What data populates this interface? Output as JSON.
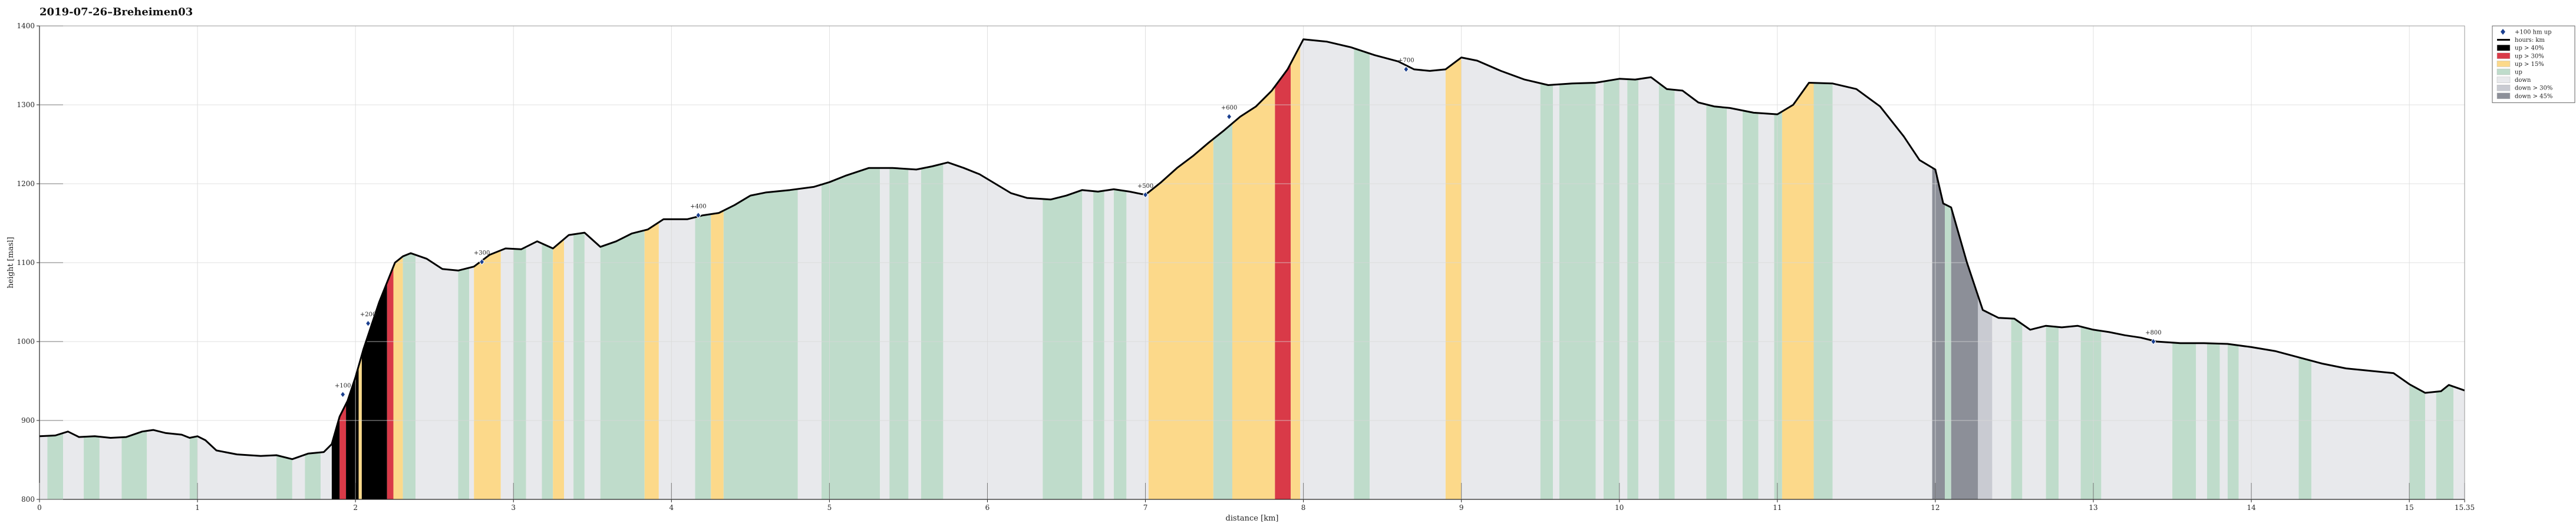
{
  "chart_data": {
    "type": "area",
    "title": "2019-07-26–Breheimen03",
    "xlabel": "distance [km]",
    "ylabel": "height [masl]",
    "xlim": [
      0,
      15.35
    ],
    "ylim": [
      800,
      1400
    ],
    "x_ticks": [
      0,
      1,
      2,
      3,
      4,
      5,
      6,
      7,
      8,
      9,
      10,
      11,
      12,
      13,
      14,
      15,
      15.35
    ],
    "x_tick_labels": [
      "0",
      "1",
      "2",
      "3",
      "4",
      "5",
      "6",
      "7",
      "8",
      "9",
      "10",
      "11",
      "12",
      "13",
      "14",
      "15",
      "15.35"
    ],
    "y_ticks": [
      800,
      900,
      1000,
      1100,
      1200,
      1300,
      1400
    ],
    "y_tick_labels": [
      "800",
      "900",
      "1000",
      "1100",
      "1200",
      "1300",
      "1400"
    ],
    "grid": true,
    "legend_position": "top-right outside",
    "colors": {
      "up_gt_40": "#000000",
      "up_gt_30": "#d93a48",
      "up_gt_15": "#fcd98a",
      "up": "#bfdccb",
      "down": "#e8e9ec",
      "down_gt_30": "#c9cbd2",
      "down_gt_45": "#8c8f98",
      "line": "#000000",
      "marker": "#1a3f8f"
    },
    "legend": [
      {
        "key": "marker",
        "label": "+100 hm up"
      },
      {
        "key": "line",
        "label": "hours: km"
      },
      {
        "key": "up_gt_40",
        "label": "up > 40%"
      },
      {
        "key": "up_gt_30",
        "label": "up > 30%"
      },
      {
        "key": "up_gt_15",
        "label": "up > 15%"
      },
      {
        "key": "up",
        "label": "up"
      },
      {
        "key": "down",
        "label": "down"
      },
      {
        "key": "down_gt_30",
        "label": "down > 30%"
      },
      {
        "key": "down_gt_45",
        "label": "down > 45%"
      }
    ],
    "profile": [
      [
        0,
        880
      ],
      [
        0.1,
        881
      ],
      [
        0.18,
        886
      ],
      [
        0.25,
        879
      ],
      [
        0.35,
        880
      ],
      [
        0.45,
        878
      ],
      [
        0.55,
        879
      ],
      [
        0.65,
        886
      ],
      [
        0.72,
        888
      ],
      [
        0.8,
        884
      ],
      [
        0.9,
        882
      ],
      [
        0.95,
        878
      ],
      [
        1.0,
        880
      ],
      [
        1.05,
        875
      ],
      [
        1.12,
        862
      ],
      [
        1.25,
        857
      ],
      [
        1.4,
        855
      ],
      [
        1.5,
        856
      ],
      [
        1.6,
        851
      ],
      [
        1.7,
        858
      ],
      [
        1.8,
        860
      ],
      [
        1.85,
        870
      ],
      [
        1.9,
        905
      ],
      [
        1.95,
        925
      ],
      [
        2.0,
        955
      ],
      [
        2.05,
        990
      ],
      [
        2.1,
        1020
      ],
      [
        2.15,
        1050
      ],
      [
        2.2,
        1075
      ],
      [
        2.25,
        1100
      ],
      [
        2.3,
        1108
      ],
      [
        2.35,
        1112
      ],
      [
        2.45,
        1105
      ],
      [
        2.55,
        1092
      ],
      [
        2.65,
        1090
      ],
      [
        2.75,
        1095
      ],
      [
        2.85,
        1110
      ],
      [
        2.95,
        1118
      ],
      [
        3.05,
        1117
      ],
      [
        3.15,
        1127
      ],
      [
        3.25,
        1118
      ],
      [
        3.35,
        1135
      ],
      [
        3.45,
        1138
      ],
      [
        3.55,
        1120
      ],
      [
        3.65,
        1127
      ],
      [
        3.75,
        1137
      ],
      [
        3.85,
        1142
      ],
      [
        3.95,
        1155
      ],
      [
        4.1,
        1155
      ],
      [
        4.2,
        1160
      ],
      [
        4.3,
        1163
      ],
      [
        4.4,
        1173
      ],
      [
        4.5,
        1185
      ],
      [
        4.6,
        1189
      ],
      [
        4.75,
        1192
      ],
      [
        4.9,
        1196
      ],
      [
        5.0,
        1202
      ],
      [
        5.1,
        1210
      ],
      [
        5.25,
        1220
      ],
      [
        5.4,
        1220
      ],
      [
        5.55,
        1218
      ],
      [
        5.65,
        1222
      ],
      [
        5.75,
        1227
      ],
      [
        5.85,
        1220
      ],
      [
        5.95,
        1212
      ],
      [
        6.05,
        1200
      ],
      [
        6.15,
        1188
      ],
      [
        6.25,
        1182
      ],
      [
        6.4,
        1180
      ],
      [
        6.5,
        1185
      ],
      [
        6.6,
        1192
      ],
      [
        6.7,
        1190
      ],
      [
        6.8,
        1193
      ],
      [
        6.9,
        1190
      ],
      [
        7.0,
        1186
      ],
      [
        7.1,
        1202
      ],
      [
        7.2,
        1220
      ],
      [
        7.3,
        1235
      ],
      [
        7.4,
        1252
      ],
      [
        7.5,
        1268
      ],
      [
        7.6,
        1285
      ],
      [
        7.7,
        1298
      ],
      [
        7.8,
        1318
      ],
      [
        7.9,
        1345
      ],
      [
        8.0,
        1383
      ],
      [
        8.15,
        1380
      ],
      [
        8.3,
        1373
      ],
      [
        8.45,
        1363
      ],
      [
        8.6,
        1355
      ],
      [
        8.7,
        1345
      ],
      [
        8.8,
        1343
      ],
      [
        8.9,
        1345
      ],
      [
        9.0,
        1360
      ],
      [
        9.1,
        1356
      ],
      [
        9.25,
        1343
      ],
      [
        9.4,
        1332
      ],
      [
        9.55,
        1325
      ],
      [
        9.7,
        1327
      ],
      [
        9.85,
        1328
      ],
      [
        10.0,
        1333
      ],
      [
        10.1,
        1332
      ],
      [
        10.2,
        1335
      ],
      [
        10.3,
        1320
      ],
      [
        10.4,
        1318
      ],
      [
        10.5,
        1303
      ],
      [
        10.6,
        1298
      ],
      [
        10.7,
        1296
      ],
      [
        10.85,
        1290
      ],
      [
        11.0,
        1288
      ],
      [
        11.1,
        1300
      ],
      [
        11.2,
        1328
      ],
      [
        11.35,
        1327
      ],
      [
        11.5,
        1320
      ],
      [
        11.65,
        1298
      ],
      [
        11.8,
        1260
      ],
      [
        11.9,
        1230
      ],
      [
        12.0,
        1218
      ],
      [
        12.05,
        1175
      ],
      [
        12.1,
        1170
      ],
      [
        12.2,
        1100
      ],
      [
        12.3,
        1040
      ],
      [
        12.4,
        1030
      ],
      [
        12.5,
        1029
      ],
      [
        12.6,
        1015
      ],
      [
        12.7,
        1020
      ],
      [
        12.8,
        1018
      ],
      [
        12.9,
        1020
      ],
      [
        13.0,
        1015
      ],
      [
        13.1,
        1012
      ],
      [
        13.2,
        1008
      ],
      [
        13.3,
        1005
      ],
      [
        13.4,
        1000
      ],
      [
        13.55,
        998
      ],
      [
        13.7,
        998
      ],
      [
        13.85,
        997
      ],
      [
        14.0,
        993
      ],
      [
        14.15,
        988
      ],
      [
        14.3,
        980
      ],
      [
        14.45,
        972
      ],
      [
        14.6,
        966
      ],
      [
        14.75,
        963
      ],
      [
        14.9,
        960
      ],
      [
        15.0,
        946
      ],
      [
        15.1,
        935
      ],
      [
        15.2,
        937
      ],
      [
        15.25,
        945
      ],
      [
        15.35,
        938
      ]
    ],
    "segments": [
      [
        0,
        0.05,
        "down"
      ],
      [
        0.05,
        0.15,
        "up"
      ],
      [
        0.15,
        0.28,
        "down"
      ],
      [
        0.28,
        0.38,
        "up"
      ],
      [
        0.38,
        0.52,
        "down"
      ],
      [
        0.52,
        0.68,
        "up"
      ],
      [
        0.68,
        0.95,
        "down"
      ],
      [
        0.95,
        1.0,
        "up"
      ],
      [
        1.0,
        1.5,
        "down"
      ],
      [
        1.5,
        1.6,
        "up"
      ],
      [
        1.6,
        1.68,
        "down"
      ],
      [
        1.68,
        1.78,
        "up"
      ],
      [
        1.78,
        1.85,
        "down"
      ],
      [
        1.85,
        1.9,
        "up_gt_40"
      ],
      [
        1.9,
        1.94,
        "up_gt_30"
      ],
      [
        1.94,
        2.02,
        "up_gt_40"
      ],
      [
        2.02,
        2.04,
        "up_gt_15"
      ],
      [
        2.04,
        2.2,
        "up_gt_40"
      ],
      [
        2.2,
        2.24,
        "up_gt_30"
      ],
      [
        2.24,
        2.3,
        "up_gt_15"
      ],
      [
        2.3,
        2.38,
        "up"
      ],
      [
        2.38,
        2.65,
        "down"
      ],
      [
        2.65,
        2.72,
        "up"
      ],
      [
        2.72,
        2.75,
        "down"
      ],
      [
        2.75,
        2.92,
        "up_gt_15"
      ],
      [
        2.92,
        3.0,
        "down"
      ],
      [
        3.0,
        3.08,
        "up"
      ],
      [
        3.08,
        3.18,
        "down"
      ],
      [
        3.18,
        3.25,
        "up"
      ],
      [
        3.25,
        3.32,
        "up_gt_15"
      ],
      [
        3.32,
        3.38,
        "down"
      ],
      [
        3.38,
        3.45,
        "up"
      ],
      [
        3.45,
        3.55,
        "down"
      ],
      [
        3.55,
        3.83,
        "up"
      ],
      [
        3.83,
        3.92,
        "up_gt_15"
      ],
      [
        3.92,
        4.15,
        "down"
      ],
      [
        4.15,
        4.25,
        "up"
      ],
      [
        4.25,
        4.33,
        "up_gt_15"
      ],
      [
        4.33,
        4.8,
        "up"
      ],
      [
        4.8,
        4.95,
        "down"
      ],
      [
        4.95,
        5.32,
        "up"
      ],
      [
        5.32,
        5.38,
        "down"
      ],
      [
        5.38,
        5.5,
        "up"
      ],
      [
        5.5,
        5.58,
        "down"
      ],
      [
        5.58,
        5.72,
        "up"
      ],
      [
        5.72,
        6.35,
        "down"
      ],
      [
        6.35,
        6.6,
        "up"
      ],
      [
        6.6,
        6.67,
        "down"
      ],
      [
        6.67,
        6.74,
        "up"
      ],
      [
        6.74,
        6.8,
        "down"
      ],
      [
        6.8,
        6.88,
        "up"
      ],
      [
        6.88,
        7.02,
        "down"
      ],
      [
        7.02,
        7.43,
        "up_gt_15"
      ],
      [
        7.43,
        7.55,
        "up"
      ],
      [
        7.55,
        7.82,
        "up_gt_15"
      ],
      [
        7.82,
        7.92,
        "up_gt_30"
      ],
      [
        7.92,
        7.98,
        "up_gt_15"
      ],
      [
        7.98,
        8.32,
        "down"
      ],
      [
        8.32,
        8.42,
        "up"
      ],
      [
        8.42,
        8.9,
        "down"
      ],
      [
        8.9,
        9.0,
        "up_gt_15"
      ],
      [
        9.0,
        9.5,
        "down"
      ],
      [
        9.5,
        9.58,
        "up"
      ],
      [
        9.58,
        9.62,
        "down"
      ],
      [
        9.62,
        9.85,
        "up"
      ],
      [
        9.85,
        9.9,
        "down"
      ],
      [
        9.9,
        10.0,
        "up"
      ],
      [
        10.0,
        10.05,
        "down"
      ],
      [
        10.05,
        10.12,
        "up"
      ],
      [
        10.12,
        10.25,
        "down"
      ],
      [
        10.25,
        10.35,
        "up"
      ],
      [
        10.35,
        10.55,
        "down"
      ],
      [
        10.55,
        10.68,
        "up"
      ],
      [
        10.68,
        10.78,
        "down"
      ],
      [
        10.78,
        10.88,
        "up"
      ],
      [
        10.88,
        10.98,
        "down"
      ],
      [
        10.98,
        11.03,
        "up"
      ],
      [
        11.03,
        11.23,
        "up_gt_15"
      ],
      [
        11.23,
        11.35,
        "up"
      ],
      [
        11.35,
        11.98,
        "down"
      ],
      [
        11.98,
        12.06,
        "down_gt_45"
      ],
      [
        12.06,
        12.1,
        "up"
      ],
      [
        12.1,
        12.27,
        "down_gt_45"
      ],
      [
        12.27,
        12.36,
        "down_gt_30"
      ],
      [
        12.36,
        12.48,
        "down"
      ],
      [
        12.48,
        12.55,
        "up"
      ],
      [
        12.55,
        12.7,
        "down"
      ],
      [
        12.7,
        12.78,
        "up"
      ],
      [
        12.78,
        12.92,
        "down"
      ],
      [
        12.92,
        13.05,
        "up"
      ],
      [
        13.05,
        13.5,
        "down"
      ],
      [
        13.5,
        13.65,
        "up"
      ],
      [
        13.65,
        13.72,
        "down"
      ],
      [
        13.72,
        13.8,
        "up"
      ],
      [
        13.8,
        13.85,
        "down"
      ],
      [
        13.85,
        13.92,
        "up"
      ],
      [
        13.92,
        14.3,
        "down"
      ],
      [
        14.3,
        14.38,
        "up"
      ],
      [
        14.38,
        15.0,
        "down"
      ],
      [
        15.0,
        15.1,
        "up"
      ],
      [
        15.1,
        15.17,
        "down"
      ],
      [
        15.17,
        15.28,
        "up"
      ],
      [
        15.28,
        15.35,
        "down"
      ]
    ],
    "markers": [
      {
        "x": 1.92,
        "y": 933,
        "label": "+100"
      },
      {
        "x": 2.08,
        "y": 1023,
        "label": "+200"
      },
      {
        "x": 2.8,
        "y": 1101,
        "label": "+300"
      },
      {
        "x": 4.17,
        "y": 1160,
        "label": "+400"
      },
      {
        "x": 7.0,
        "y": 1186,
        "label": "+500"
      },
      {
        "x": 7.53,
        "y": 1285,
        "label": "+600"
      },
      {
        "x": 8.65,
        "y": 1345,
        "label": "+700"
      },
      {
        "x": 13.38,
        "y": 1000,
        "label": "+800"
      }
    ]
  }
}
